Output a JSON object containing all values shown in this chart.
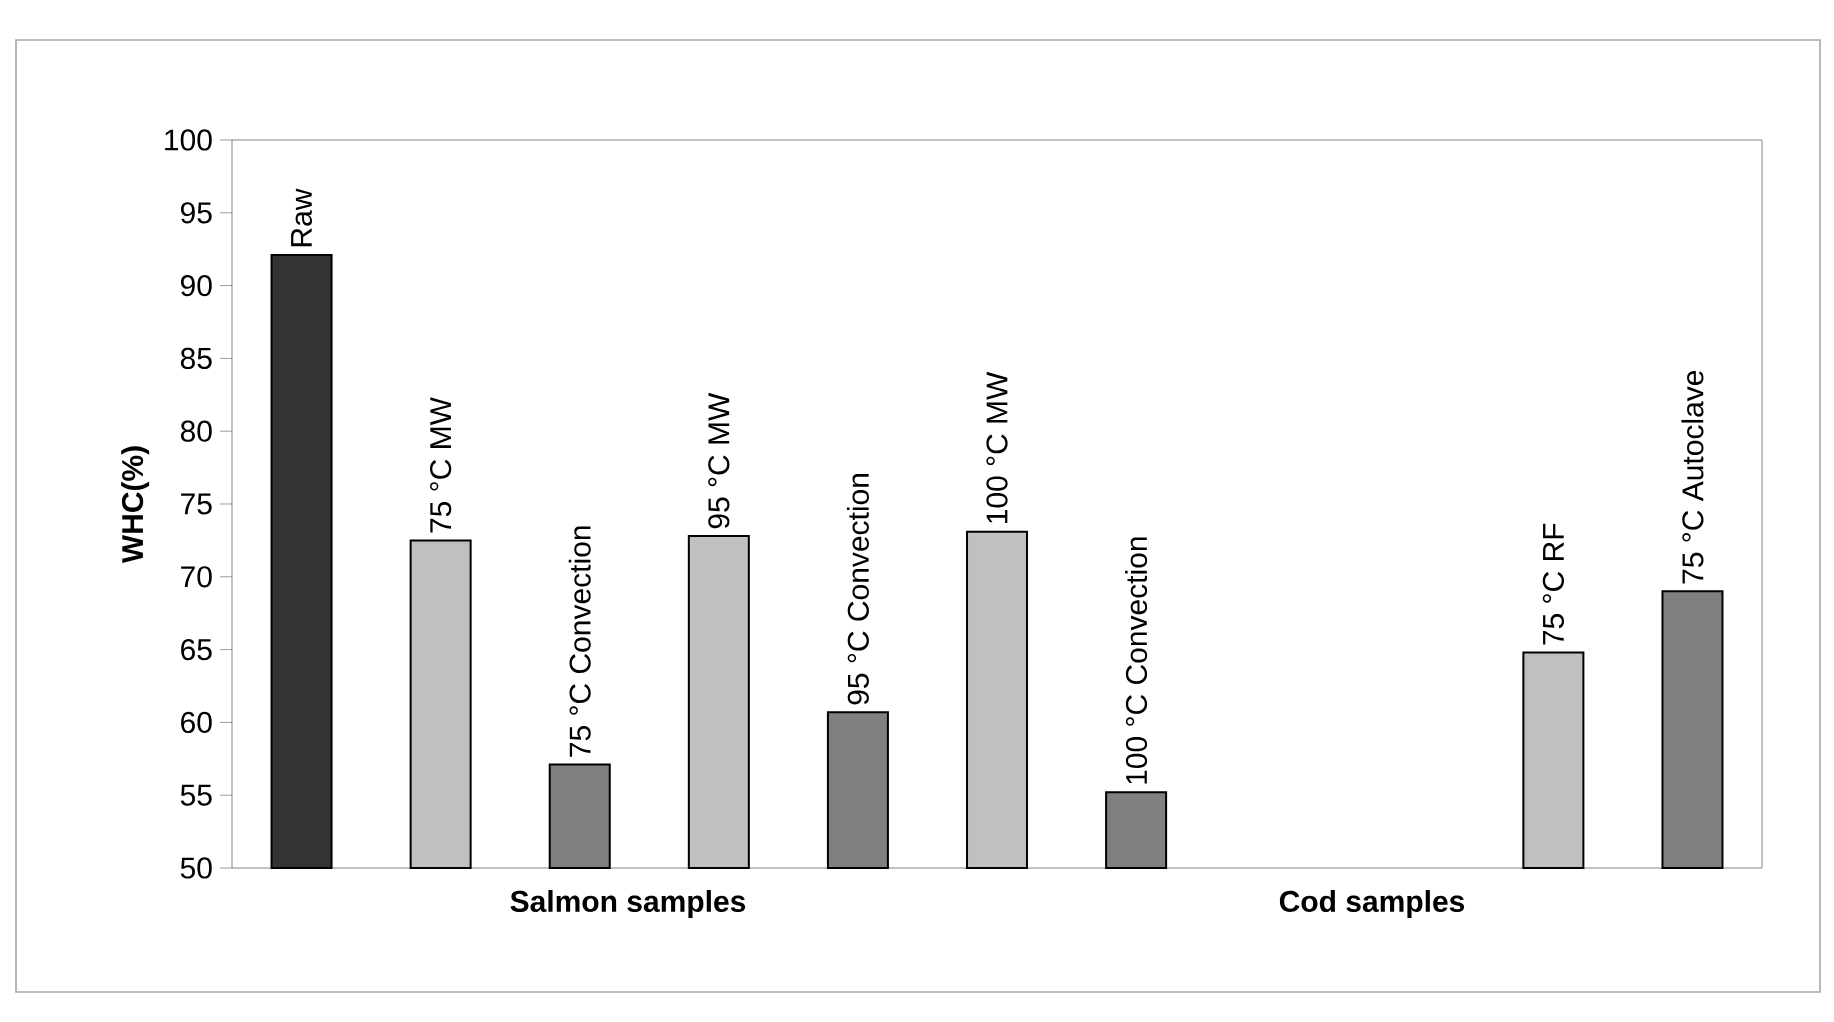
{
  "chart_data": {
    "type": "bar",
    "categories": [
      "Raw",
      "75 °C MW",
      "75 °C Convection",
      "95 °C MW",
      "95 °C Convection",
      "100 °C MW",
      "100 °C Convection",
      null,
      null,
      "75 °C RF",
      "75 °C Autoclave"
    ],
    "values": [
      92.1,
      72.5,
      57.1,
      72.8,
      60.7,
      73.1,
      55.2,
      null,
      null,
      64.8,
      69.0
    ],
    "colors": [
      "#333333",
      "#c0c0c0",
      "#808080",
      "#c0c0c0",
      "#808080",
      "#c0c0c0",
      "#808080",
      "#c0c0c0",
      "#808080",
      "#c0c0c0",
      "#808080"
    ],
    "ylim": [
      50,
      100
    ],
    "yticks": [
      50,
      55,
      60,
      65,
      70,
      75,
      80,
      85,
      90,
      95,
      100
    ],
    "ylabel": "WHC(%)",
    "annotations": [
      "Salmon samples",
      "Cod samples"
    ]
  }
}
